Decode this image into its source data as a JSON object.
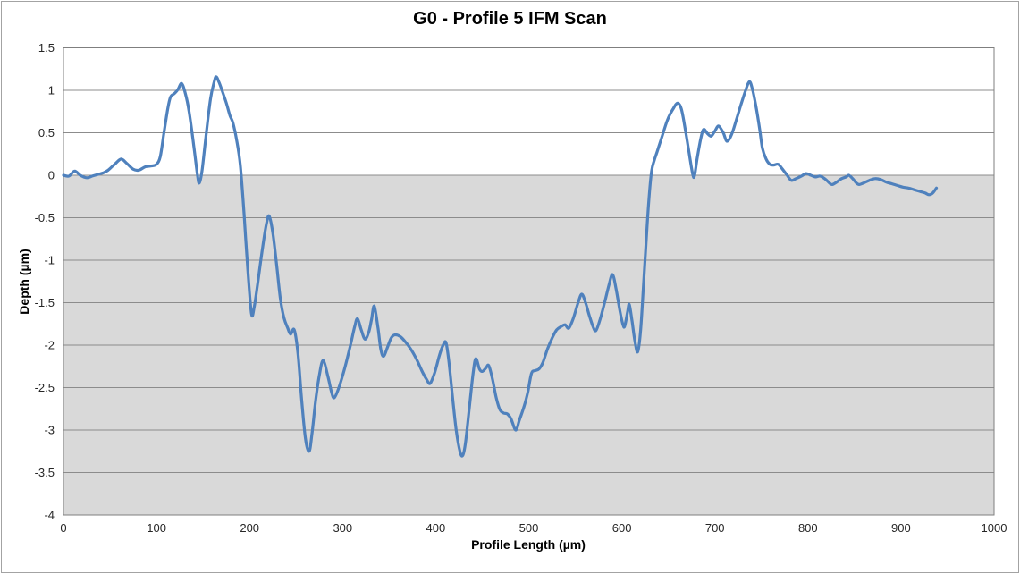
{
  "chart_data": {
    "type": "line",
    "title": "G0 - Profile 5 IFM Scan",
    "xlabel": "Profile Length (µm)",
    "ylabel": "Depth (µm)",
    "xlim": [
      0,
      1000
    ],
    "ylim": [
      -4,
      1.5
    ],
    "xticks": [
      "0",
      "100",
      "200",
      "300",
      "400",
      "500",
      "600",
      "700",
      "800",
      "900",
      "1000"
    ],
    "yticks": [
      "1.5",
      "1",
      "0.5",
      "0",
      "-0.5",
      "-1",
      "-1.5",
      "-2",
      "-2.5",
      "-3",
      "-3.5",
      "-4"
    ],
    "grid": "horizontal-only",
    "legend": false,
    "line_color": "#4F81BD",
    "band_color": "#D9D9D9",
    "band_range": [
      0,
      -4
    ],
    "gridline_color": "#8C8C8C",
    "border_color": "#7F7F7F",
    "tick_text_color": "#262626",
    "series_name": "Depth profile",
    "points": [
      [
        0,
        0
      ],
      [
        6,
        -0.01
      ],
      [
        12,
        0.05
      ],
      [
        18,
        0
      ],
      [
        25,
        -0.03
      ],
      [
        31,
        -0.01
      ],
      [
        37,
        0.01
      ],
      [
        43,
        0.03
      ],
      [
        48,
        0.06
      ],
      [
        55,
        0.13
      ],
      [
        62,
        0.19
      ],
      [
        68,
        0.14
      ],
      [
        75,
        0.07
      ],
      [
        81,
        0.06
      ],
      [
        88,
        0.1
      ],
      [
        95,
        0.11
      ],
      [
        100,
        0.13
      ],
      [
        104,
        0.22
      ],
      [
        108,
        0.5
      ],
      [
        112,
        0.78
      ],
      [
        115,
        0.92
      ],
      [
        119,
        0.96
      ],
      [
        123,
        1.01
      ],
      [
        127,
        1.08
      ],
      [
        131,
        0.96
      ],
      [
        135,
        0.75
      ],
      [
        140,
        0.35
      ],
      [
        144,
        0
      ],
      [
        146,
        -0.09
      ],
      [
        149,
        0.06
      ],
      [
        153,
        0.45
      ],
      [
        158,
        0.9
      ],
      [
        162,
        1.1
      ],
      [
        164,
        1.16
      ],
      [
        167,
        1.1
      ],
      [
        171,
        0.98
      ],
      [
        175,
        0.85
      ],
      [
        179,
        0.7
      ],
      [
        182,
        0.62
      ],
      [
        186,
        0.42
      ],
      [
        190,
        0.12
      ],
      [
        194,
        -0.45
      ],
      [
        198,
        -1.1
      ],
      [
        202,
        -1.63
      ],
      [
        205,
        -1.55
      ],
      [
        209,
        -1.25
      ],
      [
        214,
        -0.85
      ],
      [
        218,
        -0.58
      ],
      [
        221,
        -0.48
      ],
      [
        225,
        -0.68
      ],
      [
        229,
        -1.05
      ],
      [
        233,
        -1.45
      ],
      [
        237,
        -1.68
      ],
      [
        241,
        -1.8
      ],
      [
        244,
        -1.87
      ],
      [
        248,
        -1.82
      ],
      [
        252,
        -2.1
      ],
      [
        256,
        -2.65
      ],
      [
        260,
        -3.1
      ],
      [
        264,
        -3.25
      ],
      [
        267,
        -3.05
      ],
      [
        271,
        -2.65
      ],
      [
        275,
        -2.35
      ],
      [
        279,
        -2.18
      ],
      [
        284,
        -2.36
      ],
      [
        288,
        -2.55
      ],
      [
        291,
        -2.62
      ],
      [
        296,
        -2.5
      ],
      [
        302,
        -2.28
      ],
      [
        308,
        -2.02
      ],
      [
        313,
        -1.78
      ],
      [
        316,
        -1.69
      ],
      [
        320,
        -1.82
      ],
      [
        324,
        -1.93
      ],
      [
        328,
        -1.85
      ],
      [
        331,
        -1.7
      ],
      [
        334,
        -1.54
      ],
      [
        338,
        -1.8
      ],
      [
        341,
        -2.05
      ],
      [
        344,
        -2.13
      ],
      [
        348,
        -2.03
      ],
      [
        352,
        -1.92
      ],
      [
        356,
        -1.88
      ],
      [
        362,
        -1.9
      ],
      [
        368,
        -1.97
      ],
      [
        374,
        -2.06
      ],
      [
        380,
        -2.18
      ],
      [
        385,
        -2.3
      ],
      [
        390,
        -2.4
      ],
      [
        394,
        -2.45
      ],
      [
        399,
        -2.32
      ],
      [
        404,
        -2.12
      ],
      [
        408,
        -2
      ],
      [
        411,
        -1.97
      ],
      [
        414,
        -2.18
      ],
      [
        418,
        -2.6
      ],
      [
        422,
        -3
      ],
      [
        426,
        -3.25
      ],
      [
        429,
        -3.3
      ],
      [
        432,
        -3.15
      ],
      [
        436,
        -2.75
      ],
      [
        440,
        -2.35
      ],
      [
        443,
        -2.16
      ],
      [
        447,
        -2.28
      ],
      [
        450,
        -2.31
      ],
      [
        454,
        -2.27
      ],
      [
        457,
        -2.24
      ],
      [
        461,
        -2.4
      ],
      [
        465,
        -2.62
      ],
      [
        469,
        -2.76
      ],
      [
        473,
        -2.8
      ],
      [
        477,
        -2.81
      ],
      [
        481,
        -2.87
      ],
      [
        486,
        -3
      ],
      [
        490,
        -2.88
      ],
      [
        495,
        -2.72
      ],
      [
        499,
        -2.55
      ],
      [
        503,
        -2.33
      ],
      [
        507,
        -2.3
      ],
      [
        511,
        -2.28
      ],
      [
        515,
        -2.21
      ],
      [
        520,
        -2.05
      ],
      [
        525,
        -1.92
      ],
      [
        530,
        -1.82
      ],
      [
        535,
        -1.78
      ],
      [
        539,
        -1.76
      ],
      [
        543,
        -1.8
      ],
      [
        548,
        -1.68
      ],
      [
        553,
        -1.5
      ],
      [
        557,
        -1.4
      ],
      [
        561,
        -1.5
      ],
      [
        565,
        -1.65
      ],
      [
        569,
        -1.78
      ],
      [
        572,
        -1.83
      ],
      [
        576,
        -1.72
      ],
      [
        581,
        -1.52
      ],
      [
        586,
        -1.3
      ],
      [
        590,
        -1.17
      ],
      [
        594,
        -1.35
      ],
      [
        598,
        -1.6
      ],
      [
        601,
        -1.75
      ],
      [
        603,
        -1.78
      ],
      [
        606,
        -1.62
      ],
      [
        608,
        -1.52
      ],
      [
        611,
        -1.72
      ],
      [
        614,
        -1.95
      ],
      [
        617,
        -2.08
      ],
      [
        620,
        -1.85
      ],
      [
        623,
        -1.35
      ],
      [
        626,
        -0.8
      ],
      [
        629,
        -0.3
      ],
      [
        632,
        0.05
      ],
      [
        635,
        0.18
      ],
      [
        638,
        0.28
      ],
      [
        643,
        0.45
      ],
      [
        649,
        0.65
      ],
      [
        655,
        0.78
      ],
      [
        660,
        0.85
      ],
      [
        664,
        0.78
      ],
      [
        668,
        0.55
      ],
      [
        672,
        0.28
      ],
      [
        676,
        0.02
      ],
      [
        678,
        -0.01
      ],
      [
        681,
        0.2
      ],
      [
        685,
        0.44
      ],
      [
        688,
        0.54
      ],
      [
        692,
        0.49
      ],
      [
        696,
        0.46
      ],
      [
        700,
        0.52
      ],
      [
        704,
        0.58
      ],
      [
        709,
        0.5
      ],
      [
        713,
        0.4
      ],
      [
        718,
        0.48
      ],
      [
        723,
        0.65
      ],
      [
        728,
        0.83
      ],
      [
        733,
        1
      ],
      [
        737,
        1.1
      ],
      [
        740,
        1.03
      ],
      [
        744,
        0.82
      ],
      [
        748,
        0.55
      ],
      [
        751,
        0.32
      ],
      [
        755,
        0.19
      ],
      [
        759,
        0.13
      ],
      [
        763,
        0.12
      ],
      [
        768,
        0.13
      ],
      [
        772,
        0.08
      ],
      [
        777,
        0.01
      ],
      [
        782,
        -0.06
      ],
      [
        787,
        -0.04
      ],
      [
        793,
        -0.01
      ],
      [
        798,
        0.02
      ],
      [
        803,
        0
      ],
      [
        808,
        -0.02
      ],
      [
        813,
        -0.01
      ],
      [
        818,
        -0.04
      ],
      [
        823,
        -0.09
      ],
      [
        826,
        -0.11
      ],
      [
        831,
        -0.08
      ],
      [
        836,
        -0.04
      ],
      [
        841,
        -0.02
      ],
      [
        844,
        0
      ],
      [
        848,
        -0.04
      ],
      [
        852,
        -0.09
      ],
      [
        855,
        -0.11
      ],
      [
        860,
        -0.09
      ],
      [
        866,
        -0.06
      ],
      [
        872,
        -0.04
      ],
      [
        878,
        -0.05
      ],
      [
        884,
        -0.08
      ],
      [
        890,
        -0.1
      ],
      [
        896,
        -0.12
      ],
      [
        902,
        -0.14
      ],
      [
        908,
        -0.15
      ],
      [
        914,
        -0.17
      ],
      [
        920,
        -0.19
      ],
      [
        926,
        -0.21
      ],
      [
        930,
        -0.23
      ],
      [
        934,
        -0.21
      ],
      [
        938,
        -0.15
      ]
    ]
  }
}
